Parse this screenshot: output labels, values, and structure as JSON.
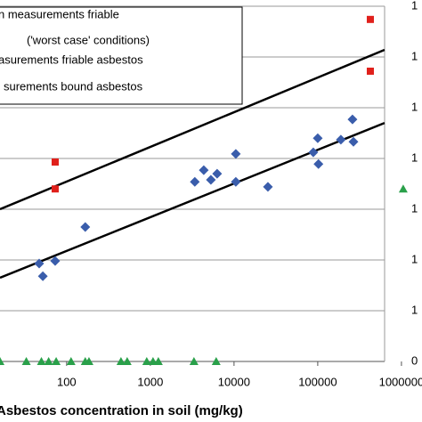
{
  "chart_data": {
    "type": "scatter",
    "x_label": "Asbestos concentration in soil (mg/kg)",
    "xscale": "log",
    "xlim": [
      16,
      1760000
    ],
    "xticks": [
      100,
      1000,
      10000,
      100000,
      1000000
    ],
    "ylim": [
      0,
      7
    ],
    "yticks": [
      0,
      {
        "value": 1,
        "label": "1"
      },
      {
        "value": 2,
        "label": "1"
      },
      {
        "value": 3,
        "label": "1"
      },
      {
        "value": 4,
        "label": "1"
      },
      {
        "value": 5,
        "label": "1"
      },
      {
        "value": 6,
        "label": "1"
      },
      {
        "value": 7,
        "label": "1"
      }
    ],
    "grid": true,
    "legend_note": "('worst case' conditions)",
    "series": [
      {
        "name": "n measurements friable",
        "color": "#e0201b",
        "marker": "square",
        "x": [
          73,
          73,
          425000,
          425000
        ],
        "values": [
          3.93,
          3.4,
          6.74,
          5.72
        ]
      },
      {
        "name": "asurements friable asbestos",
        "color": "#3a5dab",
        "marker": "diamond",
        "x": [
          47,
          52,
          73,
          167,
          3400,
          4350,
          5290,
          6280,
          10500,
          10500,
          25400,
          88500,
          100000,
          102000,
          189000,
          260000,
          267000
        ],
        "values": [
          1.93,
          1.68,
          1.98,
          2.65,
          3.54,
          3.77,
          3.58,
          3.7,
          4.09,
          3.54,
          3.44,
          4.12,
          4.4,
          3.89,
          4.37,
          4.77,
          4.33
        ]
      },
      {
        "name": "surements bound asbestos",
        "color": "#2aa04a",
        "marker": "triangle",
        "x": [
          16,
          33,
          50,
          61,
          75,
          113,
          167,
          185,
          446,
          529,
          906,
          1077,
          1247,
          3320,
          6120,
          1050000
        ],
        "values": [
          0,
          0,
          0,
          0,
          0,
          0,
          0,
          0,
          0,
          0,
          0,
          0,
          0,
          0,
          0,
          3.4
        ]
      }
    ],
    "lines": [
      {
        "color": "#000000",
        "x": [
          16,
          628000
        ],
        "values": [
          3.0,
          6.14
        ]
      },
      {
        "color": "#000000",
        "x": [
          16,
          628000
        ],
        "values": [
          1.65,
          4.7
        ]
      }
    ]
  }
}
